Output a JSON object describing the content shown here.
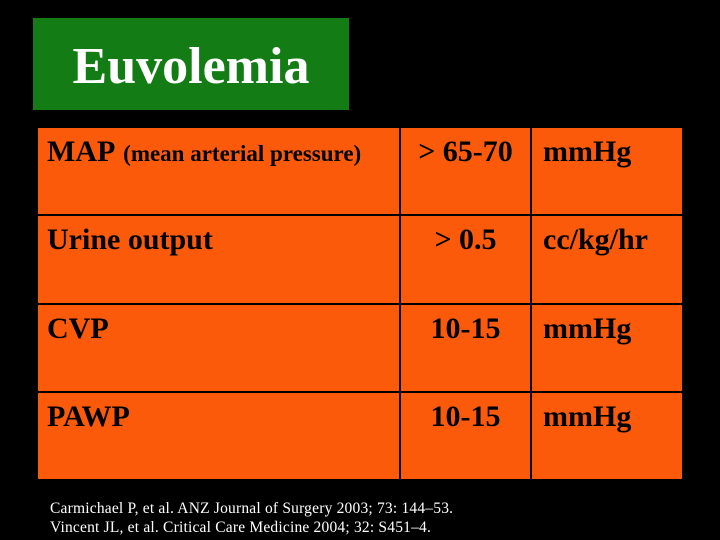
{
  "colors": {
    "background": "#000000",
    "title_box_green": "#147C14",
    "table_orange": "#FB5A0B",
    "table_text": "#000000",
    "title_text": "#FFFFFF",
    "citation_text": "#FFFFFF"
  },
  "title": {
    "text": "Euvolemia"
  },
  "table": {
    "rows": [
      {
        "name": "MAP",
        "note": "(mean arterial pressure)",
        "value": "> 65-70",
        "unit": "mmHg"
      },
      {
        "name": "Urine output",
        "note": "",
        "value": "> 0.5",
        "unit": "cc/kg/hr"
      },
      {
        "name": "CVP",
        "note": "",
        "value": "10-15",
        "unit": "mmHg"
      },
      {
        "name": "PAWP",
        "note": "",
        "value": "10-15",
        "unit": "mmHg"
      }
    ]
  },
  "citation": {
    "lines": [
      "Carmichael P, et al. ANZ Journal of Surgery 2003; 73: 144–53.",
      "Vincent JL, et al. Critical Care Medicine 2004; 32: S451–4."
    ]
  }
}
